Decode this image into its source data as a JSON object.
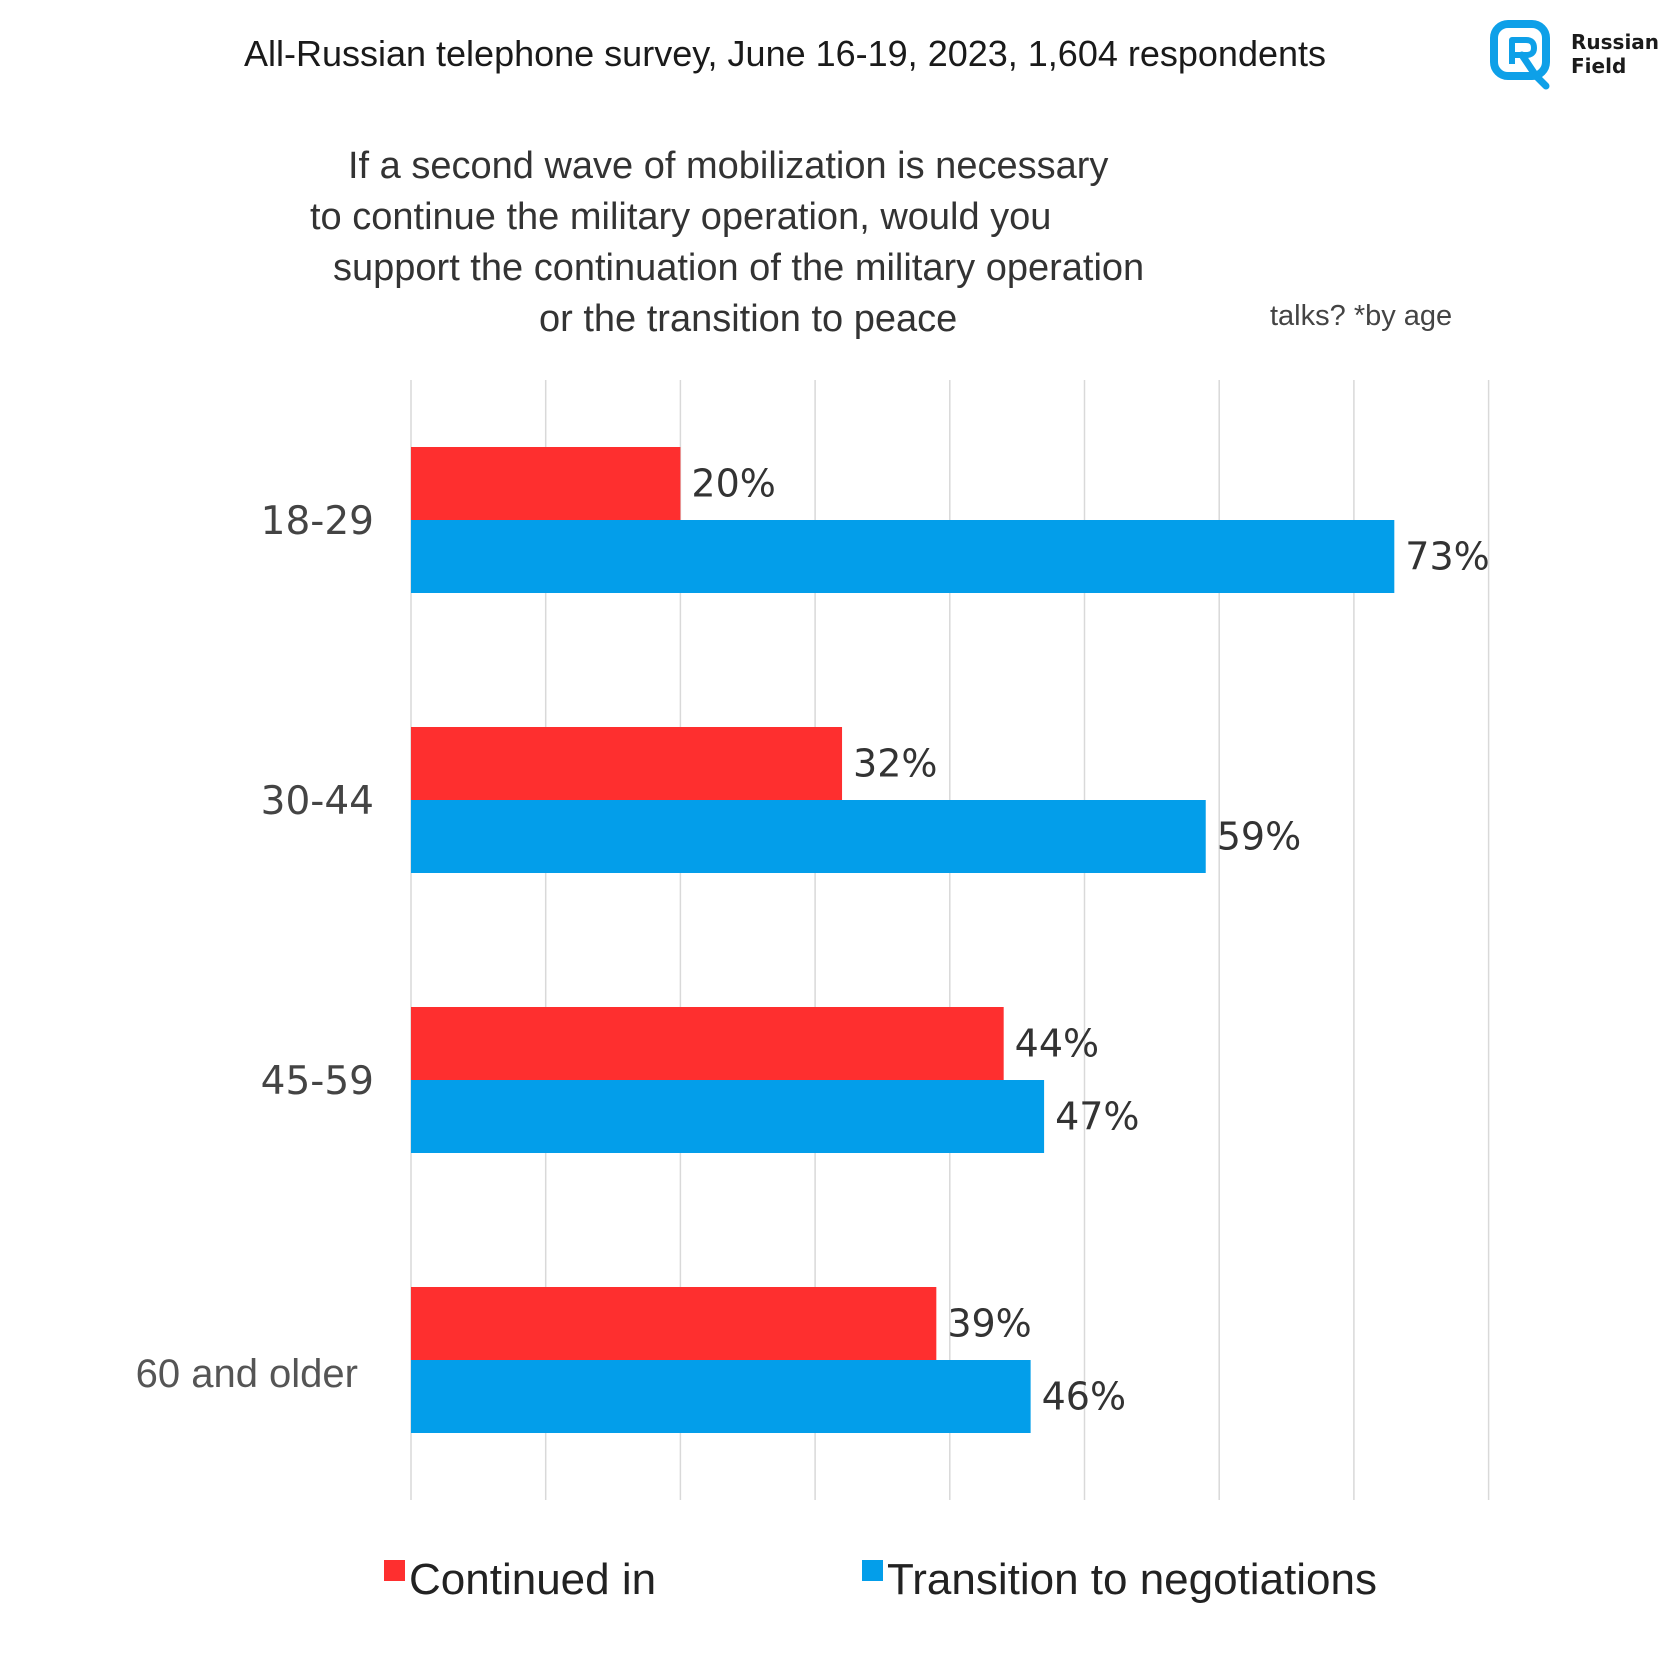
{
  "header": {
    "survey_line": "All-Russian telephone survey, June 16-19, 2023, 1,604 respondents",
    "logo_word_1": "Russian",
    "logo_word_2": "Field",
    "logo_color": "#0ea0e8"
  },
  "question": {
    "line1": "If a second wave of mobilization is necessary",
    "line2": "to continue the military operation, would you",
    "line3": "support the continuation of the military operation",
    "line4": "or the transition to peace",
    "suffix": "talks? *by age"
  },
  "legend": {
    "continued_label": "Continued in",
    "negotiations_label": "Transition to negotiations"
  },
  "chart_data": {
    "type": "bar",
    "orientation": "horizontal",
    "title": "If a second wave of mobilization is necessary to continue the military operation, would you support the continuation of the military operation or the transition to peace talks? *by age",
    "categories": [
      "18-29",
      "30-44",
      "45-59",
      "60 and older"
    ],
    "series": [
      {
        "name": "Continued in",
        "color": "#fe2f2f",
        "values": [
          20,
          32,
          44,
          39
        ],
        "labels": [
          "20%",
          "32%",
          "44%",
          "39%"
        ]
      },
      {
        "name": "Transition to negotiations",
        "color": "#039eea",
        "values": [
          73,
          59,
          47,
          46
        ],
        "labels": [
          "73%",
          "59%",
          "47%",
          "46%"
        ]
      }
    ],
    "xlim": [
      0,
      80
    ],
    "grid_step": 10,
    "grid": true,
    "xlabel": "",
    "ylabel": "",
    "legend_position": "bottom"
  }
}
